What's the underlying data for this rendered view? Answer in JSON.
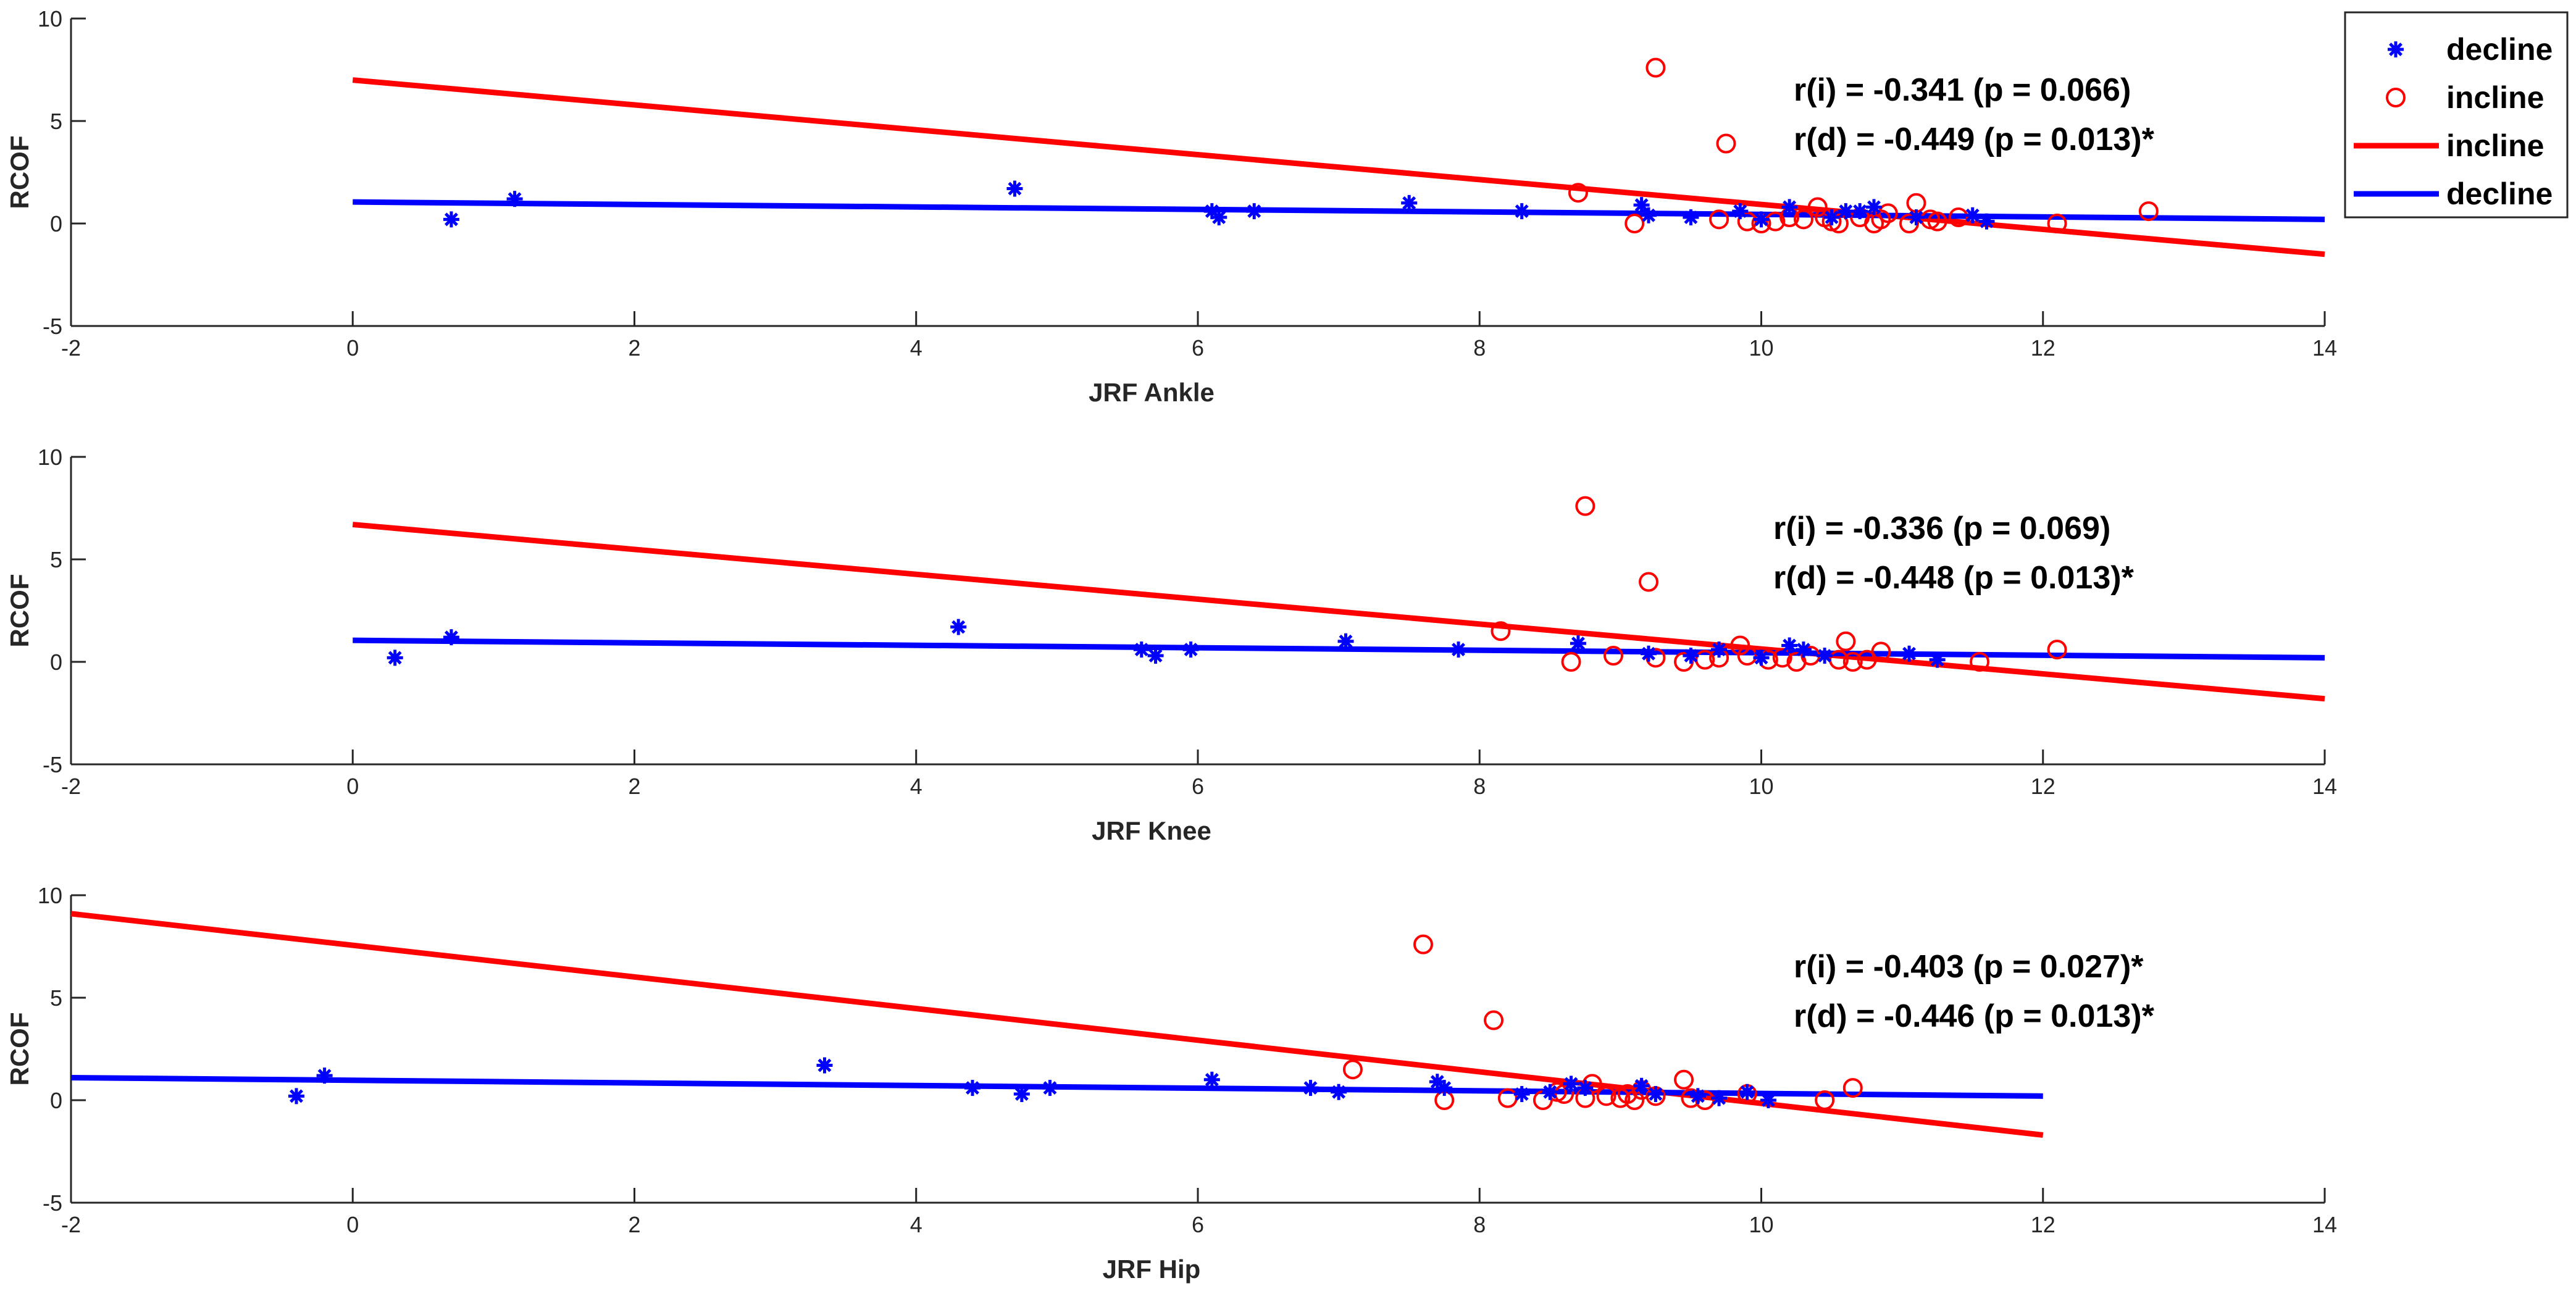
{
  "colors": {
    "incline": "#ff0000",
    "decline": "#0000ff",
    "axis": "#262626",
    "background": "#ffffff"
  },
  "legend": {
    "entries": [
      {
        "label": "decline",
        "marker": "asterisk",
        "color": "#0000ff"
      },
      {
        "label": "incline",
        "marker": "circle",
        "color": "#ff0000"
      },
      {
        "label": "incline",
        "marker": "line",
        "color": "#ff0000"
      },
      {
        "label": "decline",
        "marker": "line",
        "color": "#0000ff"
      }
    ],
    "placement": "top-right, outside axes"
  },
  "chart_data": [
    {
      "type": "scatter",
      "xlabel": "JRF Ankle",
      "ylabel": "RCOF",
      "xlim": [
        -2,
        14
      ],
      "ylim": [
        -5,
        10
      ],
      "xticks": [
        "-2",
        "0",
        "2",
        "4",
        "6",
        "8",
        "10",
        "12",
        "14"
      ],
      "yticks": [
        "-5",
        "0",
        "5",
        "10"
      ],
      "annotations": [
        "r(i) = -0.341 (p = 0.066)",
        "r(d) = -0.449 (p = 0.013)*"
      ],
      "series": [
        {
          "name": "decline",
          "marker": "asterisk",
          "color": "#0000ff",
          "x": [
            0.7,
            1.15,
            4.7,
            6.1,
            6.15,
            6.4,
            7.5,
            8.3,
            9.15,
            9.2,
            9.5,
            9.85,
            10.0,
            10.2,
            10.5,
            10.6,
            10.7,
            10.8,
            11.1,
            11.5,
            11.6
          ],
          "y": [
            0.2,
            1.2,
            1.7,
            0.6,
            0.3,
            0.6,
            1.0,
            0.6,
            0.9,
            0.4,
            0.3,
            0.6,
            0.2,
            0.8,
            0.3,
            0.6,
            0.6,
            0.8,
            0.3,
            0.4,
            0.1
          ]
        },
        {
          "name": "incline",
          "marker": "circle",
          "color": "#ff0000",
          "x": [
            9.25,
            9.75,
            8.7,
            9.1,
            9.7,
            9.9,
            10.0,
            10.1,
            10.2,
            10.3,
            10.4,
            10.45,
            10.5,
            10.55,
            10.7,
            10.8,
            10.85,
            10.9,
            11.05,
            11.1,
            11.2,
            11.25,
            11.4,
            12.1,
            12.75
          ],
          "y": [
            7.6,
            3.9,
            1.5,
            0.0,
            0.2,
            0.1,
            0.0,
            0.1,
            0.3,
            0.2,
            0.8,
            0.3,
            0.1,
            0.0,
            0.3,
            0.0,
            0.2,
            0.5,
            0.0,
            1.0,
            0.2,
            0.1,
            0.3,
            0.0,
            0.6
          ]
        }
      ],
      "fits": [
        {
          "name": "incline",
          "color": "#ff0000",
          "x": [
            0,
            14
          ],
          "y": [
            7.0,
            -1.5
          ]
        },
        {
          "name": "decline",
          "color": "#0000ff",
          "x": [
            0,
            14
          ],
          "y": [
            1.05,
            0.2
          ]
        }
      ]
    },
    {
      "type": "scatter",
      "xlabel": "JRF Knee",
      "ylabel": "RCOF",
      "xlim": [
        -2,
        14
      ],
      "ylim": [
        -5,
        10
      ],
      "xticks": [
        "-2",
        "0",
        "2",
        "4",
        "6",
        "8",
        "10",
        "12",
        "14"
      ],
      "yticks": [
        "-5",
        "0",
        "5",
        "10"
      ],
      "annotations": [
        "r(i) = -0.336 (p = 0.069)",
        "r(d) = -0.448 (p = 0.013)*"
      ],
      "series": [
        {
          "name": "decline",
          "marker": "asterisk",
          "color": "#0000ff",
          "x": [
            0.3,
            0.7,
            4.3,
            5.6,
            5.7,
            5.95,
            7.05,
            7.85,
            8.7,
            9.2,
            9.5,
            9.7,
            10.0,
            10.2,
            10.3,
            10.45,
            11.05,
            11.25
          ],
          "y": [
            0.2,
            1.2,
            1.7,
            0.6,
            0.3,
            0.6,
            1.0,
            0.6,
            0.9,
            0.4,
            0.3,
            0.6,
            0.2,
            0.8,
            0.6,
            0.3,
            0.4,
            0.1
          ]
        },
        {
          "name": "incline",
          "marker": "circle",
          "color": "#ff0000",
          "x": [
            8.75,
            9.2,
            8.15,
            8.65,
            8.95,
            9.25,
            9.45,
            9.6,
            9.7,
            9.85,
            9.9,
            10.05,
            10.15,
            10.25,
            10.35,
            10.55,
            10.6,
            10.65,
            10.75,
            10.85,
            11.55,
            12.1
          ],
          "y": [
            7.6,
            3.9,
            1.5,
            0.0,
            0.3,
            0.2,
            0.0,
            0.1,
            0.2,
            0.8,
            0.3,
            0.1,
            0.2,
            0.0,
            0.3,
            0.1,
            1.0,
            0.0,
            0.1,
            0.5,
            0.0,
            0.6
          ]
        }
      ],
      "fits": [
        {
          "name": "incline",
          "color": "#ff0000",
          "x": [
            0,
            14
          ],
          "y": [
            6.7,
            -1.8
          ]
        },
        {
          "name": "decline",
          "color": "#0000ff",
          "x": [
            0,
            14
          ],
          "y": [
            1.05,
            0.2
          ]
        }
      ]
    },
    {
      "type": "scatter",
      "xlabel": "JRF Hip",
      "ylabel": "RCOF",
      "xlim": [
        -2,
        14
      ],
      "ylim": [
        -5,
        10
      ],
      "xticks": [
        "-2",
        "0",
        "2",
        "4",
        "6",
        "8",
        "10",
        "12",
        "14"
      ],
      "yticks": [
        "-5",
        "0",
        "5",
        "10"
      ],
      "annotations": [
        "r(i) = -0.403 (p = 0.027)*",
        "r(d) = -0.446 (p = 0.013)*"
      ],
      "series": [
        {
          "name": "decline",
          "marker": "asterisk",
          "color": "#0000ff",
          "x": [
            -0.4,
            -0.2,
            3.35,
            4.4,
            4.75,
            4.95,
            6.1,
            6.8,
            7.0,
            7.7,
            7.75,
            8.3,
            8.5,
            8.65,
            8.75,
            9.15,
            9.25,
            9.55,
            9.7,
            9.9,
            10.05
          ],
          "y": [
            0.2,
            1.2,
            1.7,
            0.6,
            0.3,
            0.6,
            1.0,
            0.6,
            0.4,
            0.9,
            0.6,
            0.3,
            0.4,
            0.8,
            0.6,
            0.7,
            0.3,
            0.2,
            0.1,
            0.4,
            0.0
          ]
        },
        {
          "name": "incline",
          "marker": "circle",
          "color": "#ff0000",
          "x": [
            7.6,
            8.1,
            7.1,
            7.75,
            8.2,
            8.45,
            8.55,
            8.6,
            8.75,
            8.8,
            8.9,
            9.0,
            9.05,
            9.1,
            9.15,
            9.25,
            9.45,
            9.5,
            9.6,
            9.9,
            10.45,
            10.65
          ],
          "y": [
            7.6,
            3.9,
            1.5,
            0.0,
            0.1,
            0.0,
            0.4,
            0.3,
            0.1,
            0.8,
            0.2,
            0.1,
            0.3,
            0.0,
            0.5,
            0.2,
            1.0,
            0.1,
            0.0,
            0.3,
            0.0,
            0.6
          ]
        }
      ],
      "fits": [
        {
          "name": "incline",
          "color": "#ff0000",
          "x": [
            -2,
            12
          ],
          "y": [
            9.1,
            -1.7
          ]
        },
        {
          "name": "decline",
          "color": "#0000ff",
          "x": [
            -2,
            12
          ],
          "y": [
            1.1,
            0.2
          ]
        }
      ]
    }
  ]
}
